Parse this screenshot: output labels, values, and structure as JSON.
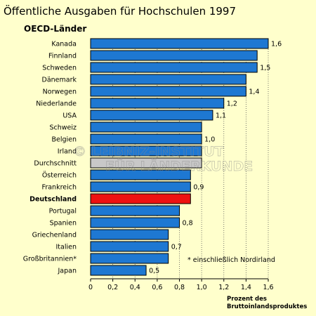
{
  "chart_data": {
    "type": "bar",
    "orientation": "horizontal",
    "title": "Öffentliche Ausgaben für Hochschulen 1997",
    "subtitle": "OECD-Länder",
    "xlabel_line1": "Prozent des",
    "xlabel_line2": "Bruttoinlandsproduktes",
    "xlim": [
      0,
      1.6
    ],
    "ticks": [
      0,
      0.2,
      0.4,
      0.6,
      0.8,
      1.0,
      1.2,
      1.4,
      1.6
    ],
    "tick_labels": [
      "0",
      "0,2",
      "0,4",
      "0,6",
      "0,8",
      "1,0",
      "1,2",
      "1,4",
      "1,6"
    ],
    "grid": "vertical dotted",
    "categories": [
      "Kanada",
      "Finnland",
      "Schweden",
      "Dänemark",
      "Norwegen",
      "Niederlande",
      "USA",
      "Schweiz",
      "Belgien",
      "Irland",
      "Durchschnitt",
      "Österreich",
      "Frankreich",
      "Deutschland",
      "Portugal",
      "Spanien",
      "Griechenland",
      "Italien",
      "Großbritannien*",
      "Japan"
    ],
    "values": [
      1.6,
      1.5,
      1.5,
      1.4,
      1.4,
      1.2,
      1.1,
      1.0,
      1.0,
      1.0,
      1.0,
      0.9,
      0.9,
      0.9,
      0.8,
      0.8,
      0.7,
      0.7,
      0.7,
      0.5
    ],
    "data_labels": [
      "1,6",
      "",
      "1,5",
      "",
      "1,4",
      "1,2",
      "1,1",
      "",
      "1,0",
      "",
      "",
      "",
      "0,9",
      "",
      "",
      "0,8",
      "",
      "0,7",
      "",
      "0,5"
    ],
    "highlight": {
      "Deutschland": "#ee1111",
      "Durchschnitt": "#c8c8c8"
    },
    "bar_color": "#1e78d2",
    "annotation": "*  einschließlich Nordirland",
    "watermark_line1": "© LEIBNIZ-INSTITUT",
    "watermark_line2": "FÜR LÄNDERKUNDE"
  }
}
